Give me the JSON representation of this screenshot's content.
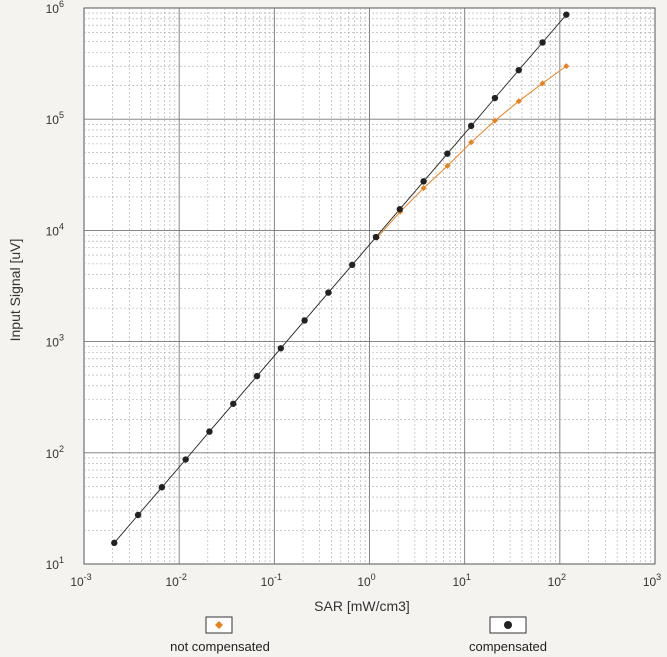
{
  "chart_data": {
    "type": "line",
    "xscale": "log",
    "yscale": "log",
    "xlabel": "SAR [mW/cm3]",
    "ylabel": "Input Signal [uV]",
    "xlim": [
      0.001,
      1000
    ],
    "ylim": [
      10,
      1000000
    ],
    "grid": true,
    "legend_position": "bottom",
    "x_tick_labels": [
      {
        "base": "10",
        "exp": "-3"
      },
      {
        "base": "10",
        "exp": "-2"
      },
      {
        "base": "10",
        "exp": "-1"
      },
      {
        "base": "10",
        "exp": "0"
      },
      {
        "base": "10",
        "exp": "1"
      },
      {
        "base": "10",
        "exp": "2"
      },
      {
        "base": "10",
        "exp": "3"
      }
    ],
    "y_tick_labels": [
      {
        "base": "10",
        "exp": "1"
      },
      {
        "base": "10",
        "exp": "2"
      },
      {
        "base": "10",
        "exp": "3"
      },
      {
        "base": "10",
        "exp": "4"
      },
      {
        "base": "10",
        "exp": "5"
      },
      {
        "base": "10",
        "exp": "6"
      }
    ],
    "series": [
      {
        "name": "not compensated",
        "color": "#e8821e",
        "marker": "diamond",
        "x": [
          1.2,
          2.1,
          3.7,
          6.6,
          11.7,
          20.8,
          37.0,
          65.8,
          117.0
        ],
        "y": [
          8600,
          14700,
          24000,
          38000,
          62000,
          97000,
          145000,
          210000,
          300000
        ]
      },
      {
        "name": "compensated",
        "color": "#222222",
        "marker": "circle",
        "x": [
          0.00208,
          0.0037,
          0.00658,
          0.0117,
          0.0208,
          0.037,
          0.0658,
          0.117,
          0.208,
          0.37,
          0.658,
          1.17,
          2.08,
          3.7,
          6.58,
          11.7,
          20.8,
          37.0,
          65.8,
          117.0
        ],
        "y": [
          15.5,
          27.6,
          49,
          87,
          155,
          276,
          490,
          871,
          1550,
          2760,
          4900,
          8710,
          15500,
          27600,
          49000,
          87100,
          155000,
          276000,
          490000,
          871000
        ]
      }
    ]
  }
}
